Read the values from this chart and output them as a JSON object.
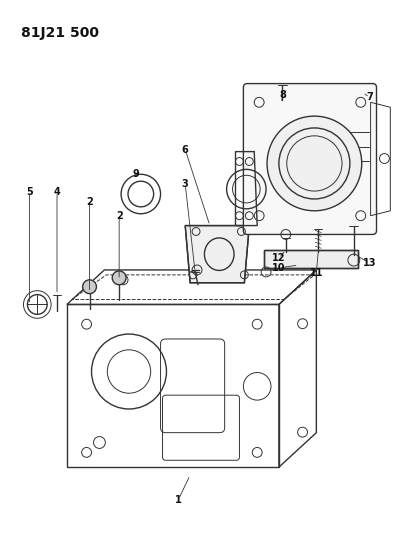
{
  "title": "81J21 500",
  "bg_color": "#ffffff",
  "line_color": "#333333",
  "label_color": "#111111",
  "figsize": [
    4.0,
    5.33
  ],
  "dpi": 100
}
